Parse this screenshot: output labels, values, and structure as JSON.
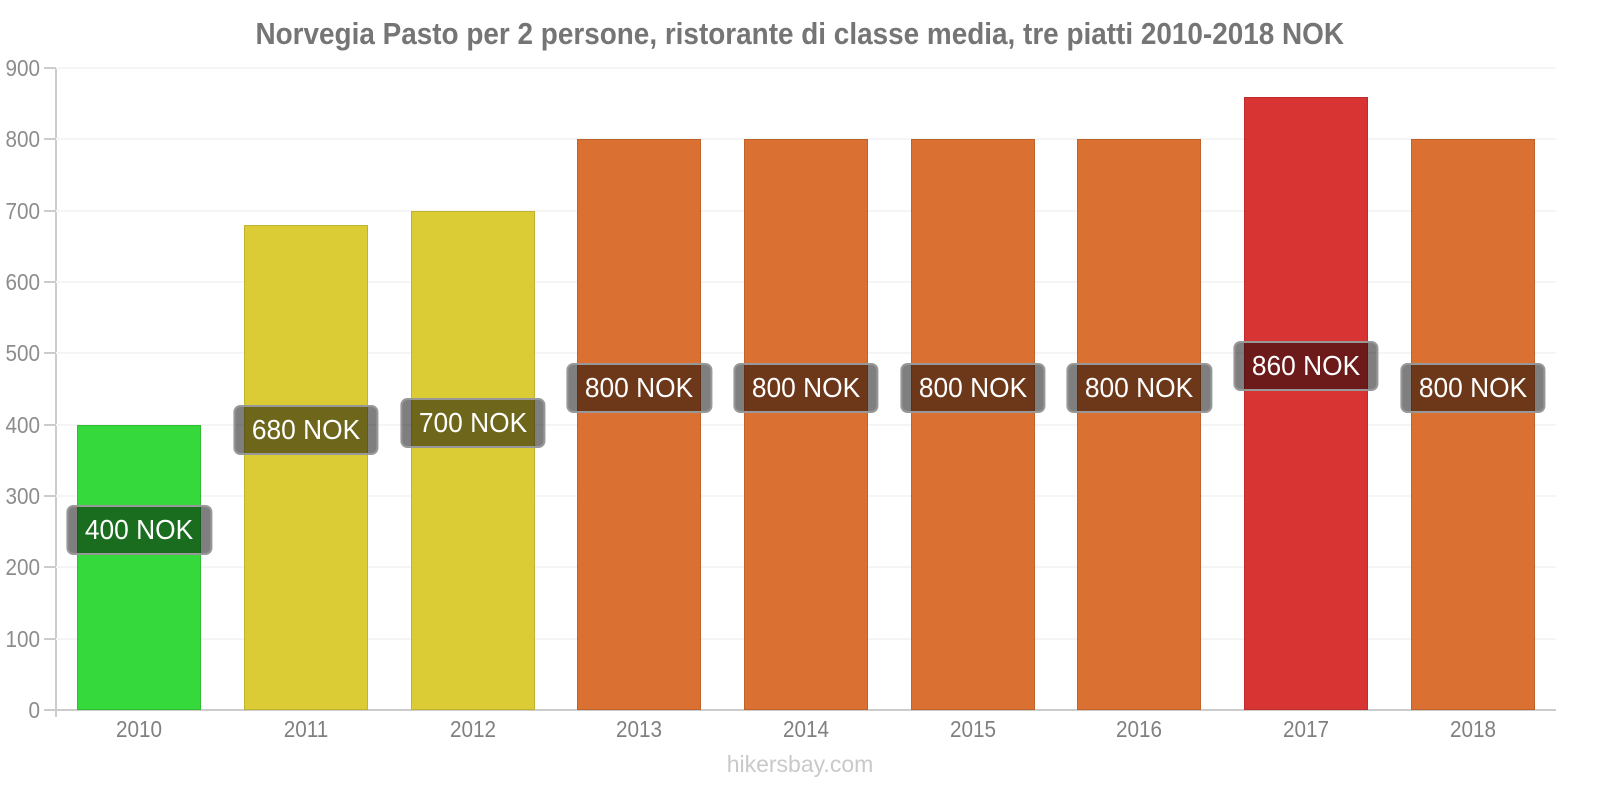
{
  "chart_data": {
    "type": "bar",
    "title": "Norvegia Pasto per 2 persone, ristorante di classe media, tre piatti 2010-2018 NOK",
    "categories": [
      "2010",
      "2011",
      "2012",
      "2013",
      "2014",
      "2015",
      "2016",
      "2017",
      "2018"
    ],
    "values": [
      400,
      680,
      700,
      800,
      800,
      800,
      800,
      860,
      800
    ],
    "value_labels": [
      "400 NOK",
      "680 NOK",
      "700 NOK",
      "800 NOK",
      "800 NOK",
      "800 NOK",
      "800 NOK",
      "860 NOK",
      "800 NOK"
    ],
    "bar_colors": [
      "#35d93c",
      "#dbcc36",
      "#dbcc36",
      "#db7033",
      "#db7033",
      "#db7033",
      "#db7033",
      "#d93434",
      "#db7033"
    ],
    "currency": "NOK",
    "xlabel": "",
    "ylabel": "",
    "ylim": [
      0,
      900
    ],
    "ytick_labels": [
      "0",
      "100",
      "200",
      "300",
      "400",
      "500",
      "600",
      "700",
      "800",
      "900"
    ],
    "grid": true,
    "legend_position": "none"
  },
  "styles": {
    "axis_color": "#cccccc",
    "grid_color": "#f5f5f5",
    "title_color": "#757575",
    "tick_label_color": "#8c8c8c",
    "x_label_color": "#808080",
    "value_label_bg": "rgba(0,0,0,0.5)",
    "value_label_border": "#989898",
    "value_label_text": "#ffffff",
    "footer_color": "#c9c9c9"
  },
  "footer": {
    "watermark": "hikersbay.com"
  }
}
